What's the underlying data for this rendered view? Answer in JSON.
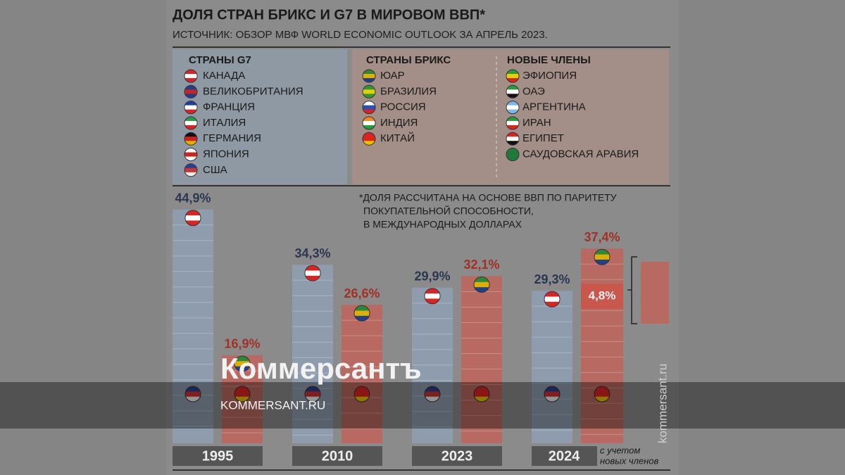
{
  "title": "ДОЛЯ СТРАН БРИКС И G7 В МИРОВОМ ВВП*",
  "source": "ИСТОЧНИК: ОБЗОР МВФ WORLD ECONOMIC OUTLOOK ЗА АПРЕЛЬ 2023.",
  "legend": {
    "g7": {
      "title": "СТРАНЫ G7",
      "items": [
        "КАНАДА",
        "ВЕЛИКОБРИТАНИЯ",
        "ФРАНЦИЯ",
        "ИТАЛИЯ",
        "ГЕРМАНИЯ",
        "ЯПОНИЯ",
        "США"
      ]
    },
    "brics": {
      "title": "СТРАНЫ БРИКС",
      "items": [
        "ЮАР",
        "БРАЗИЛИЯ",
        "РОССИЯ",
        "ИНДИЯ",
        "КИТАЙ"
      ]
    },
    "new_members": {
      "title": "НОВЫЕ ЧЛЕНЫ",
      "items": [
        "ЭФИОПИЯ",
        "ОАЭ",
        "АРГЕНТИНА",
        "ИРАН",
        "ЕГИПЕТ",
        "САУДОВСКАЯ АРАВИЯ"
      ]
    }
  },
  "footnote": [
    "*ДОЛЯ РАССЧИТАНА НА ОСНОВЕ ВВП ПО ПАРИТЕТУ",
    "ПОКУПАТЕЛЬНОЙ СПОСОБНОСТИ,",
    "В МЕЖДУНАРОДНЫХ ДОЛЛАРАХ"
  ],
  "chart_data": {
    "type": "bar",
    "categories": [
      "1995",
      "2010",
      "2023",
      "2024"
    ],
    "category_note": [
      "с учетом",
      "новых членов"
    ],
    "series": [
      {
        "color": "#8e9cad",
        "label_color": "#2b3752",
        "values": [
          44.9,
          34.3,
          29.9,
          29.3
        ],
        "value_labels": [
          "44,9%",
          "34,3%",
          "29,9%",
          "29,3%"
        ]
      },
      {
        "color": "#b86a62",
        "label_color": "#a32f25",
        "values": [
          16.9,
          26.6,
          32.1,
          37.4
        ],
        "value_labels": [
          "16,9%",
          "26,6%",
          "32,1%",
          "37,4%"
        ]
      }
    ],
    "new_members_share": {
      "value": 4.8,
      "value_label": "4,8%",
      "color": "#c9574c"
    }
  },
  "watermark": "Коммерсантъ",
  "site": "KOMMERSANT.RU",
  "site_vertical": "kommersant.ru"
}
